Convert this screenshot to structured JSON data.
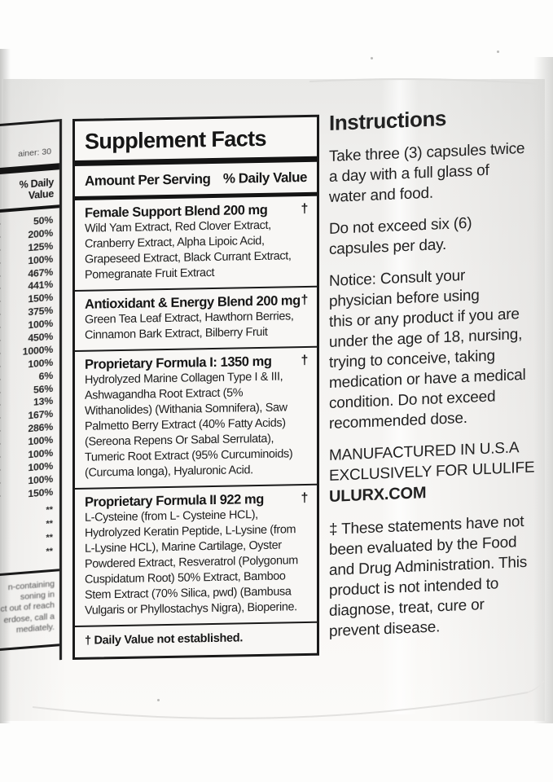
{
  "colors": {
    "ink": "#1a1a1a",
    "label_paper": "#f8f7f5",
    "photo_background": "#fdfdfc"
  },
  "left_panel": {
    "container_fragment": "ainer: 30",
    "daily_value_header": "% Daily Value",
    "percent_values": [
      "50%",
      "200%",
      "125%",
      "100%",
      "467%",
      "441%",
      "150%",
      "375%",
      "100%",
      "450%",
      "1000%",
      "100%",
      "6%",
      "56%",
      "13%",
      "167%",
      "286%",
      "100%",
      "100%",
      "100%",
      "100%",
      "150%"
    ],
    "no_dv_marks": [
      "**",
      "**",
      "**",
      "**"
    ],
    "warning_fragment_lines": [
      "n-containing",
      "soning in",
      "ct out of reach",
      "erdose, call a",
      "mediately."
    ]
  },
  "supplement_facts": {
    "title": "Supplement Facts",
    "amount_per_serving_label": "Amount Per Serving",
    "daily_value_label": "% Daily Value",
    "sections": [
      {
        "heading": "Female Support Blend 200 mg",
        "dagger": "†",
        "lines": [
          "Wild Yam Extract, Red Clover Extract,",
          "Cranberry Extract, Alpha Lipoic Acid,",
          "Grapeseed Extract, Black Currant Extract,",
          "Pomegranate Fruit Extract"
        ]
      },
      {
        "heading": "Antioxidant & Energy Blend 200 mg",
        "dagger": "†",
        "lines": [
          "Green Tea Leaf Extract, Hawthorn Berries,",
          "Cinnamon Bark Extract, Bilberry Fruit"
        ]
      },
      {
        "heading": "Proprietary Formula I: 1350 mg",
        "dagger": "†",
        "lines": [
          "Hydrolyzed Marine Collagen Type I & III,",
          "Ashwagandha Root Extract (5%",
          "Withanolides) (Withania Somnifera), Saw",
          "Palmetto Berry Extract (40% Fatty Acids)",
          "(Sereona Repens Or Sabal Serrulata),",
          "Tumeric Root Extract (95% Curcuminoids)",
          "(Curcuma longa), Hyaluronic Acid."
        ]
      },
      {
        "heading": "Proprietary Formula II 922 mg",
        "dagger": "†",
        "lines": [
          "L-Cysteine (from L- Cysteine HCL),",
          "Hydrolyzed Keratin Peptide, L-Lysine (from",
          "L-Lysine HCL), Marine Cartilage, Oyster",
          "Powdered Extract, Resveratrol (Polygonum",
          "Cuspidatum Root) 50% Extract, Bamboo",
          "Stem Extract (70% Silica, pwd) (Bambusa",
          "Vulgaris or Phyllostachys Nigra), Bioperine."
        ]
      }
    ],
    "footnote": "† Daily Value not established."
  },
  "instructions": {
    "title": "Instructions",
    "paragraphs": [
      [
        "Take three (3) capsules twice",
        "a day with a full glass of",
        "water and food."
      ],
      [
        "Do not exceed six (6)",
        "capsules per day."
      ],
      [
        "Notice: Consult your",
        "physician before using",
        "this or any product if you are",
        "under the age of 18, nursing,",
        "trying to conceive, taking",
        "medication or have a medical",
        "condition. Do not exceed",
        "recommended dose."
      ]
    ],
    "manufacturer_lines": [
      "MANUFACTURED IN U.S.A",
      "EXCLUSIVELY FOR ULULIFE"
    ],
    "website": "ULURX.COM",
    "disclaimer_lines": [
      "‡ These statements have not",
      "been evaluated by the Food",
      "and Drug Administration. This",
      "product is not intended to",
      "diagnose, treat, cure or",
      "prevent disease."
    ]
  }
}
